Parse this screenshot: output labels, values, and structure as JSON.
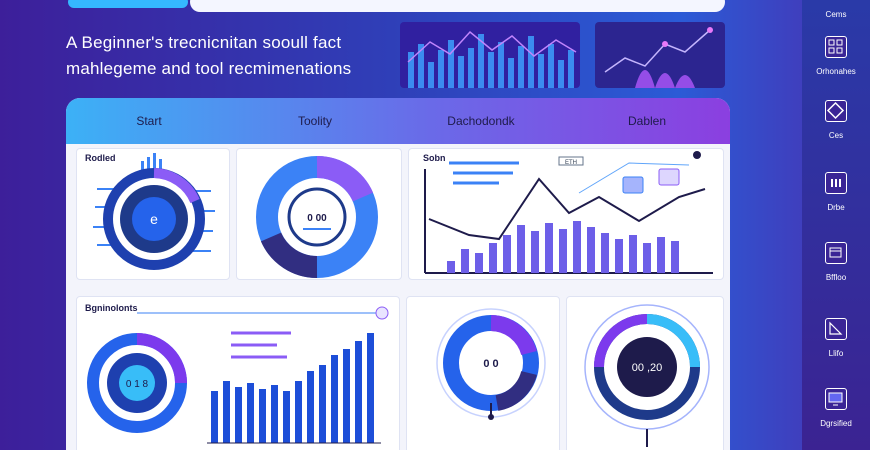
{
  "header": {
    "heading_line1": "A Beginner's trecnicnitan sooull fact",
    "heading_line2": "mahlegeme and tool recmimenations"
  },
  "tabs": [
    {
      "label": "Start"
    },
    {
      "label": "Toolity"
    },
    {
      "label": "Dachodondk"
    },
    {
      "label": "Dablen"
    }
  ],
  "cards": {
    "top_left_label": "Rodled",
    "top_left_center": "e",
    "top_mid_readout": "0 00",
    "top_right_label": "Sobn",
    "top_right_badge": "ETH",
    "bottom_left_label": "Bgninolonts",
    "bottom_left_readout": "0 1 8",
    "bottom_mid_readout": "0 0",
    "bottom_right_readout": "00 ,20"
  },
  "sidebar": [
    {
      "label": "Cems",
      "icon": "image-icon"
    },
    {
      "label": "Orhonahes",
      "icon": "grid-icon"
    },
    {
      "label": "Ces",
      "icon": "diamond-icon"
    },
    {
      "label": "Drbe",
      "icon": "database-icon"
    },
    {
      "label": "Bffloo",
      "icon": "window-icon"
    },
    {
      "label": "Llifo",
      "icon": "triangle-icon"
    },
    {
      "label": "Dgrsified",
      "icon": "monitor-icon"
    }
  ],
  "colors": {
    "accent_blue": "#2e6fe0",
    "accent_purple": "#7a3fe0",
    "navy": "#1e1b4b"
  }
}
